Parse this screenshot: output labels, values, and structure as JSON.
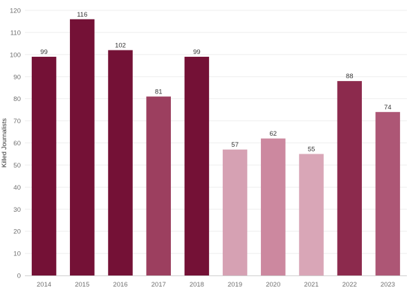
{
  "chart_data": {
    "type": "bar",
    "ylabel": "Killed Journalists",
    "xlabel": "",
    "categories": [
      "2014",
      "2015",
      "2016",
      "2017",
      "2018",
      "2019",
      "2020",
      "2021",
      "2022",
      "2023"
    ],
    "values": [
      99,
      116,
      102,
      81,
      99,
      57,
      62,
      55,
      88,
      74
    ],
    "ylim": [
      0,
      120
    ],
    "yticks": [
      0,
      10,
      20,
      30,
      40,
      50,
      60,
      70,
      80,
      90,
      100,
      110,
      120
    ],
    "grid": true,
    "legend": "none",
    "bar_colors": [
      "#741136",
      "#741136",
      "#741136",
      "#9c3f5f",
      "#741136",
      "#d6a1b3",
      "#cc889f",
      "#d9a6b7",
      "#8c2a4d",
      "#ad5675"
    ]
  }
}
